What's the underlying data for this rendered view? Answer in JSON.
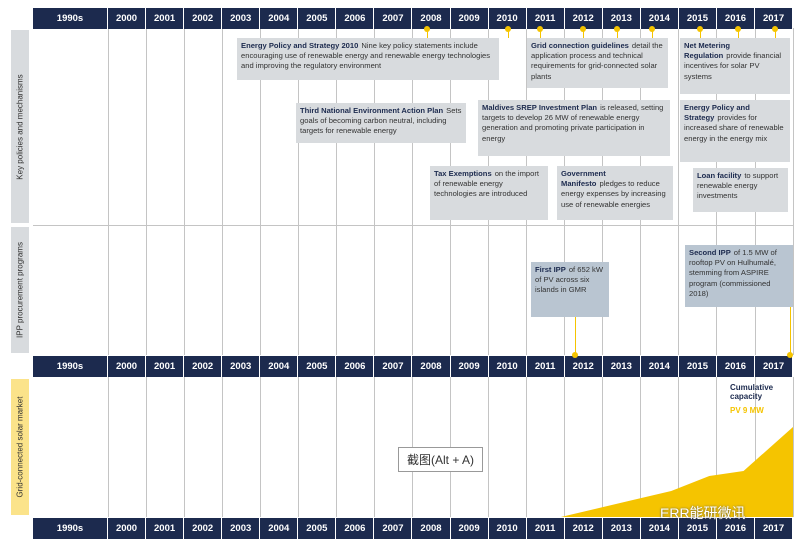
{
  "years": [
    "1990s",
    "2000",
    "2001",
    "2002",
    "2003",
    "2004",
    "2005",
    "2006",
    "2007",
    "2008",
    "2009",
    "2010",
    "2011",
    "2012",
    "2013",
    "2014",
    "2015",
    "2016",
    "2017"
  ],
  "sections": [
    "Key policies and mechanisms",
    "IPP procurement programs",
    "Grid-connected solar market"
  ],
  "policies": [
    {
      "bold": "Energy Policy and Strategy 2010",
      "text": "Nine key policy statements include encouraging use of renewable energy and renewable energy technologies and improving the regulatory environment"
    },
    {
      "bold": "Third National Environment Action Plan",
      "text": "Sets goals of becoming carbon neutral, including targets for renewable energy"
    },
    {
      "bold": "Tax Exemptions",
      "text": "on the import of renewable energy technologies are introduced"
    },
    {
      "bold": "Grid connection guidelines",
      "text": "detail the application process and technical requirements for grid-connected solar plants"
    },
    {
      "bold": "Maldives SREP Investment Plan",
      "text": "is released, setting targets to develop 26 MW of renewable energy generation and promoting private participation in energy"
    },
    {
      "bold": "Government Manifesto",
      "text": "pledges to reduce energy expenses by increasing use of renewable energies"
    },
    {
      "bold": "Net Metering Regulation",
      "text": "provide financial incentives for solar PV systems"
    },
    {
      "bold": "Energy Policy and Strategy",
      "text": "provides for increased share of renewable energy in the energy mix"
    },
    {
      "bold": "Loan facility",
      "text": "to support renewable energy investments"
    }
  ],
  "ipp": [
    {
      "bold": "First IPP",
      "text": "of 652 kW of PV across six islands in GMR"
    },
    {
      "bold": "Second IPP",
      "text": "of 1.5 MW of rooftop PV on Hulhumalé, stemming from ASPIRE program (commissioned 2018)"
    }
  ],
  "market": {
    "type": "area",
    "x": [
      2011.9,
      2014.8,
      2015.8,
      2016.7,
      2018
    ],
    "values": [
      0,
      2.6,
      4.1,
      4.6,
      9
    ],
    "xlim": [
      2000,
      2018
    ],
    "ylim": [
      0,
      14
    ],
    "color": "#f5c400",
    "caption": "Cumulative capacity",
    "value_label": "PV 9 MW"
  },
  "watermarks": [
    "截图(Alt + A)",
    "ERR能研微讯"
  ]
}
